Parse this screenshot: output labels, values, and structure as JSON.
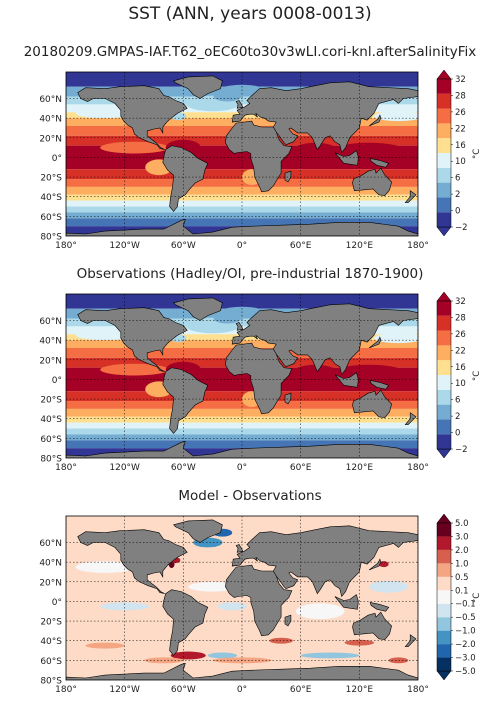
{
  "suptitle": "SST (ANN, years 0008-0013)",
  "panels": [
    {
      "title": "20180209.GMPAS-IAF.T62_oEC60to30v3wLI.cori-knl.afterSalinityFix",
      "kind": "sst",
      "colorbar": {
        "labels": [
          "32",
          "28",
          "26",
          "22",
          "16",
          "10",
          "6",
          "2",
          "0",
          "−2"
        ],
        "unit": "°C"
      }
    },
    {
      "title": "Observations (Hadley/OI, pre-industrial 1870-1900)",
      "kind": "sst",
      "colorbar": {
        "labels": [
          "32",
          "28",
          "26",
          "22",
          "16",
          "10",
          "6",
          "2",
          "0",
          "−2"
        ],
        "unit": "°C"
      }
    },
    {
      "title": "Model - Observations",
      "kind": "diff",
      "colorbar": {
        "labels": [
          "5.0",
          "3.0",
          "2.0",
          "1.0",
          "0.5",
          "0.1",
          "−0.1",
          "−0.5",
          "−1.0",
          "−2.0",
          "−3.0",
          "−5.0"
        ],
        "unit": "°C"
      }
    }
  ],
  "axes": {
    "lat_labels": [
      "60°N",
      "40°N",
      "20°N",
      "0°",
      "20°S",
      "40°S",
      "60°S",
      "80°S"
    ],
    "lon_labels": [
      "180°",
      "120°W",
      "60°W",
      "0°",
      "60°E",
      "120°E",
      "180°"
    ]
  },
  "colors": {
    "sst": [
      "#313695",
      "#4575b4",
      "#74add1",
      "#abd9e9",
      "#e0f3f8",
      "#fee090",
      "#fdae61",
      "#f46d43",
      "#d73027",
      "#a50026"
    ],
    "diff": [
      "#053061",
      "#2166ac",
      "#4393c3",
      "#92c5de",
      "#d1e5f0",
      "#f7f7f7",
      "#fddbc7",
      "#f4a582",
      "#d6604d",
      "#b2182b",
      "#67001f"
    ],
    "land": "#808080"
  }
}
